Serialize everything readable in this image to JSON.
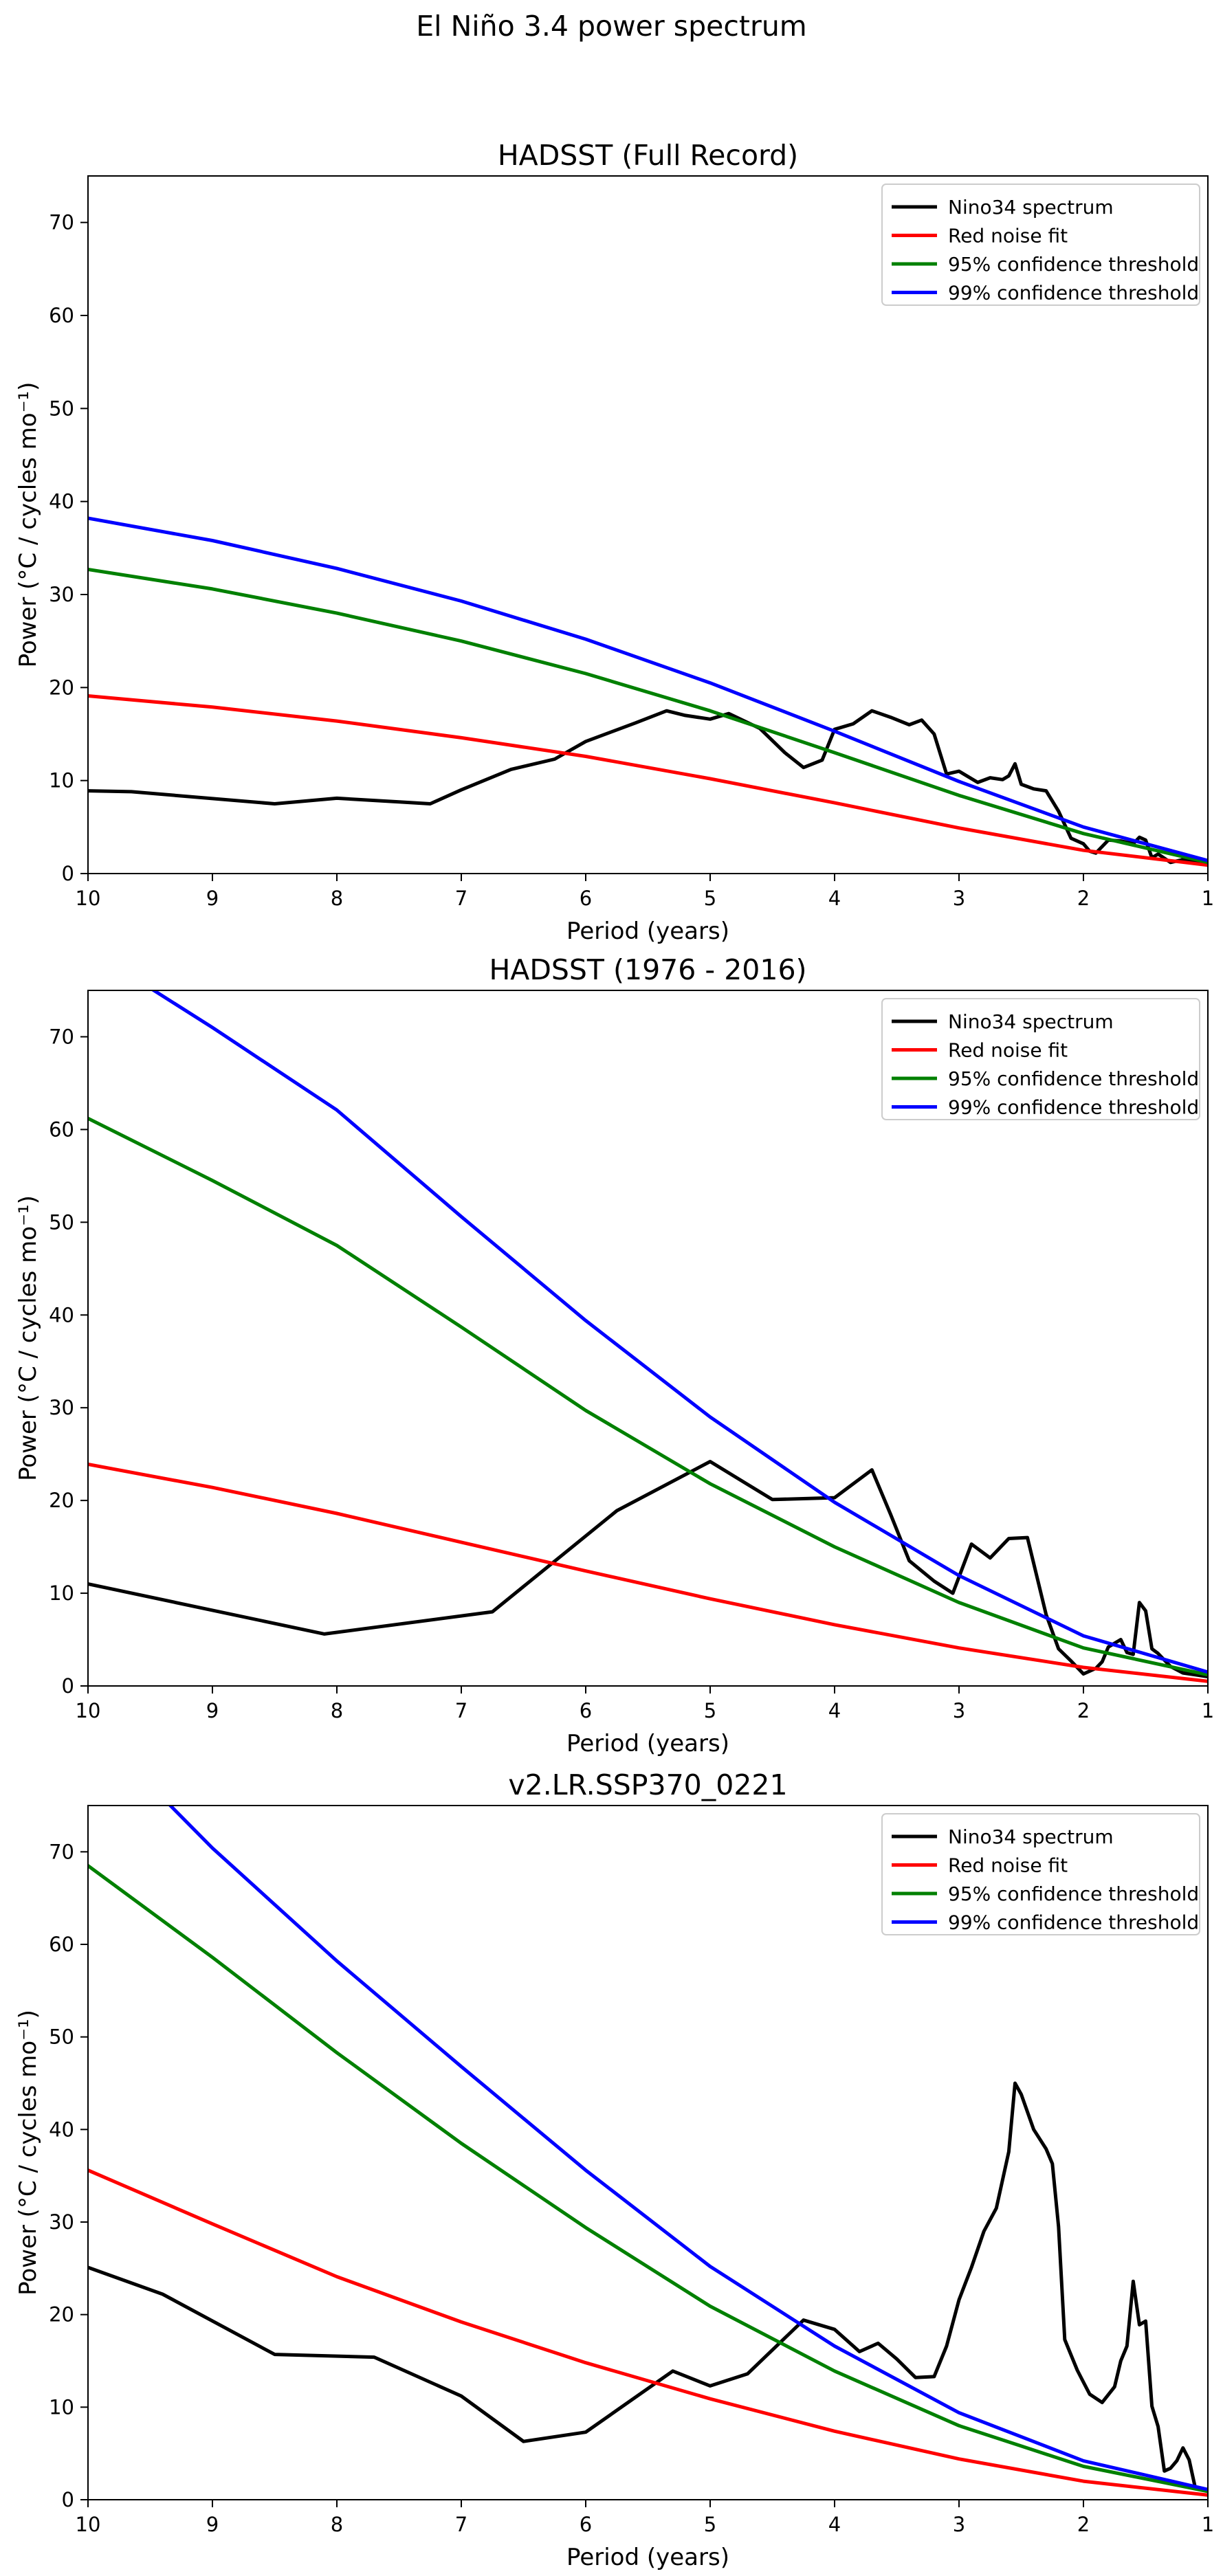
{
  "figure": {
    "title": "El Niño 3.4 power spectrum"
  },
  "legend_labels": [
    "Nino34 spectrum",
    "Red noise fit",
    "95% confidence threshold",
    "99% confidence threshold"
  ],
  "colors": {
    "spectrum": "#000000",
    "red_noise": "#ff0000",
    "ci95": "#008000",
    "ci99": "#0000ff"
  },
  "chart_data": [
    {
      "type": "line",
      "title": "HADSST (Full Record)",
      "xlabel": "Period (years)",
      "ylabel": "Power (°C / cycles mo⁻¹)",
      "xlim": [
        10,
        1
      ],
      "ylim": [
        0,
        75
      ],
      "xticks": [
        10,
        9,
        8,
        7,
        6,
        5,
        4,
        3,
        2,
        1
      ],
      "yticks": [
        0,
        10,
        20,
        30,
        40,
        50,
        60,
        70
      ],
      "legend_position": "upper right",
      "series": [
        {
          "name": "Nino34 spectrum",
          "color": "#000000",
          "x": [
            10,
            9.65,
            8.5,
            8.0,
            7.5,
            7.25,
            7.0,
            6.6,
            6.25,
            6.0,
            5.6,
            5.35,
            5.2,
            5.0,
            4.85,
            4.6,
            4.4,
            4.25,
            4.1,
            4.0,
            3.85,
            3.7,
            3.55,
            3.4,
            3.3,
            3.2,
            3.1,
            3.0,
            2.85,
            2.75,
            2.65,
            2.6,
            2.55,
            2.5,
            2.4,
            2.3,
            2.2,
            2.1,
            2.0,
            1.95,
            1.9,
            1.8,
            1.7,
            1.6,
            1.55,
            1.5,
            1.45,
            1.4,
            1.3,
            1.2,
            1.1,
            1.0
          ],
          "y": [
            8.9,
            8.8,
            7.5,
            8.1,
            7.7,
            7.5,
            9.0,
            11.2,
            12.3,
            14.2,
            16.2,
            17.5,
            17.0,
            16.6,
            17.2,
            15.6,
            13.0,
            11.4,
            12.2,
            15.5,
            16.1,
            17.5,
            16.8,
            16.0,
            16.5,
            15.0,
            10.7,
            11.0,
            9.8,
            10.3,
            10.1,
            10.5,
            11.8,
            9.6,
            9.1,
            8.9,
            6.7,
            3.8,
            3.2,
            2.4,
            2.2,
            3.6,
            3.5,
            3.2,
            3.9,
            3.6,
            1.7,
            2.1,
            1.2,
            1.5,
            1.3,
            1.0
          ]
        },
        {
          "name": "Red noise fit",
          "color": "#ff0000",
          "x": [
            10,
            9,
            8,
            7,
            6,
            5,
            4,
            3,
            2,
            1
          ],
          "y": [
            19.1,
            17.9,
            16.4,
            14.6,
            12.6,
            10.2,
            7.6,
            4.9,
            2.5,
            0.9
          ]
        },
        {
          "name": "95% confidence threshold",
          "color": "#008000",
          "x": [
            10,
            9,
            8,
            7,
            6,
            5,
            4,
            3,
            2,
            1
          ],
          "y": [
            32.7,
            30.6,
            28.0,
            25.0,
            21.5,
            17.5,
            13.0,
            8.4,
            4.3,
            1.2
          ]
        },
        {
          "name": "99% confidence threshold",
          "color": "#0000ff",
          "x": [
            10,
            9,
            8,
            7,
            6,
            5,
            4,
            3,
            2,
            1
          ],
          "y": [
            38.2,
            35.8,
            32.8,
            29.3,
            25.2,
            20.5,
            15.3,
            9.9,
            5.0,
            1.4
          ]
        }
      ]
    },
    {
      "type": "line",
      "title": "HADSST (1976 - 2016)",
      "xlabel": "Period (years)",
      "ylabel": "Power (°C / cycles mo⁻¹)",
      "xlim": [
        10,
        1
      ],
      "ylim": [
        0,
        75
      ],
      "xticks": [
        10,
        9,
        8,
        7,
        6,
        5,
        4,
        3,
        2,
        1
      ],
      "yticks": [
        0,
        10,
        20,
        30,
        40,
        50,
        60,
        70
      ],
      "legend_position": "upper right",
      "series": [
        {
          "name": "Nino34 spectrum",
          "color": "#000000",
          "x": [
            10,
            8.1,
            6.75,
            5.75,
            5.0,
            4.5,
            4.0,
            3.7,
            3.55,
            3.4,
            3.2,
            3.05,
            2.9,
            2.75,
            2.6,
            2.45,
            2.3,
            2.2,
            2.1,
            2.0,
            1.9,
            1.85,
            1.8,
            1.7,
            1.65,
            1.6,
            1.55,
            1.5,
            1.45,
            1.4,
            1.3,
            1.2,
            1.1,
            1.0
          ],
          "y": [
            11.0,
            5.6,
            8.0,
            18.9,
            24.2,
            20.1,
            20.3,
            23.3,
            18.5,
            13.5,
            11.3,
            10.0,
            15.3,
            13.8,
            15.9,
            16.0,
            7.7,
            4.0,
            2.7,
            1.3,
            1.9,
            2.6,
            4.2,
            5.0,
            3.6,
            3.4,
            9.0,
            8.1,
            4.0,
            3.5,
            2.1,
            1.4,
            1.2,
            1.0
          ]
        },
        {
          "name": "Red noise fit",
          "color": "#ff0000",
          "x": [
            10,
            9,
            8,
            7,
            6,
            5,
            4,
            3,
            2,
            1
          ],
          "y": [
            23.9,
            21.4,
            18.6,
            15.5,
            12.4,
            9.4,
            6.6,
            4.1,
            2.0,
            0.5
          ]
        },
        {
          "name": "95% confidence threshold",
          "color": "#008000",
          "x": [
            10,
            9,
            8,
            7,
            6,
            5,
            4,
            3,
            2,
            1
          ],
          "y": [
            61.2,
            54.5,
            47.5,
            38.7,
            29.7,
            21.8,
            15.0,
            9.0,
            4.1,
            1.2
          ]
        },
        {
          "name": "99% confidence threshold",
          "color": "#0000ff",
          "x": [
            10,
            9,
            8,
            7,
            6,
            5,
            4,
            3,
            2,
            1
          ],
          "y": [
            79.5,
            71.0,
            62.1,
            50.6,
            39.4,
            29.0,
            19.8,
            11.9,
            5.4,
            1.5
          ]
        }
      ]
    },
    {
      "type": "line",
      "title": "v2.LR.SSP370_0221",
      "xlabel": "Period (years)",
      "ylabel": "Power (°C / cycles mo⁻¹)",
      "xlim": [
        10,
        1
      ],
      "ylim": [
        0,
        75
      ],
      "xticks": [
        10,
        9,
        8,
        7,
        6,
        5,
        4,
        3,
        2,
        1
      ],
      "yticks": [
        0,
        10,
        20,
        30,
        40,
        50,
        60,
        70
      ],
      "legend_position": "upper right",
      "series": [
        {
          "name": "Nino34 spectrum",
          "color": "#000000",
          "x": [
            10,
            9.4,
            8.5,
            7.7,
            7.0,
            6.5,
            6.0,
            5.3,
            5.0,
            4.7,
            4.25,
            4.0,
            3.8,
            3.65,
            3.5,
            3.35,
            3.2,
            3.1,
            3.0,
            2.9,
            2.8,
            2.7,
            2.6,
            2.55,
            2.5,
            2.4,
            2.3,
            2.25,
            2.2,
            2.15,
            2.05,
            2.0,
            1.95,
            1.85,
            1.75,
            1.7,
            1.65,
            1.6,
            1.55,
            1.5,
            1.45,
            1.4,
            1.35,
            1.3,
            1.25,
            1.2,
            1.15,
            1.1,
            1.05,
            1.0
          ],
          "y": [
            25.1,
            22.2,
            15.7,
            15.4,
            11.2,
            6.3,
            7.3,
            13.9,
            12.3,
            13.6,
            19.4,
            18.4,
            16.0,
            16.9,
            15.2,
            13.2,
            13.3,
            16.6,
            21.6,
            25.1,
            29.0,
            31.5,
            37.6,
            45.0,
            43.8,
            40.0,
            37.9,
            36.3,
            29.5,
            17.3,
            14.0,
            12.7,
            11.4,
            10.5,
            12.2,
            15.0,
            16.6,
            23.6,
            18.9,
            19.3,
            10.1,
            7.9,
            3.1,
            3.4,
            4.2,
            5.6,
            4.3,
            1.2,
            1.1,
            0.9
          ]
        },
        {
          "name": "Red noise fit",
          "color": "#ff0000",
          "x": [
            10,
            9,
            8,
            7,
            6,
            5,
            4,
            3,
            2,
            1
          ],
          "y": [
            35.6,
            29.8,
            24.1,
            19.2,
            14.8,
            10.9,
            7.4,
            4.4,
            2.0,
            0.5
          ]
        },
        {
          "name": "95% confidence threshold",
          "color": "#008000",
          "x": [
            10,
            9,
            8,
            7,
            6,
            5,
            4,
            3,
            2,
            1
          ],
          "y": [
            68.5,
            58.6,
            48.3,
            38.5,
            29.4,
            20.9,
            13.9,
            8.0,
            3.6,
            0.9
          ]
        },
        {
          "name": "99% confidence threshold",
          "color": "#0000ff",
          "x": [
            10,
            9,
            8,
            7,
            6,
            5,
            4,
            3,
            2,
            1
          ],
          "y": [
            84.0,
            70.4,
            58.2,
            46.8,
            35.6,
            25.2,
            16.6,
            9.4,
            4.2,
            1.1
          ]
        }
      ]
    }
  ]
}
